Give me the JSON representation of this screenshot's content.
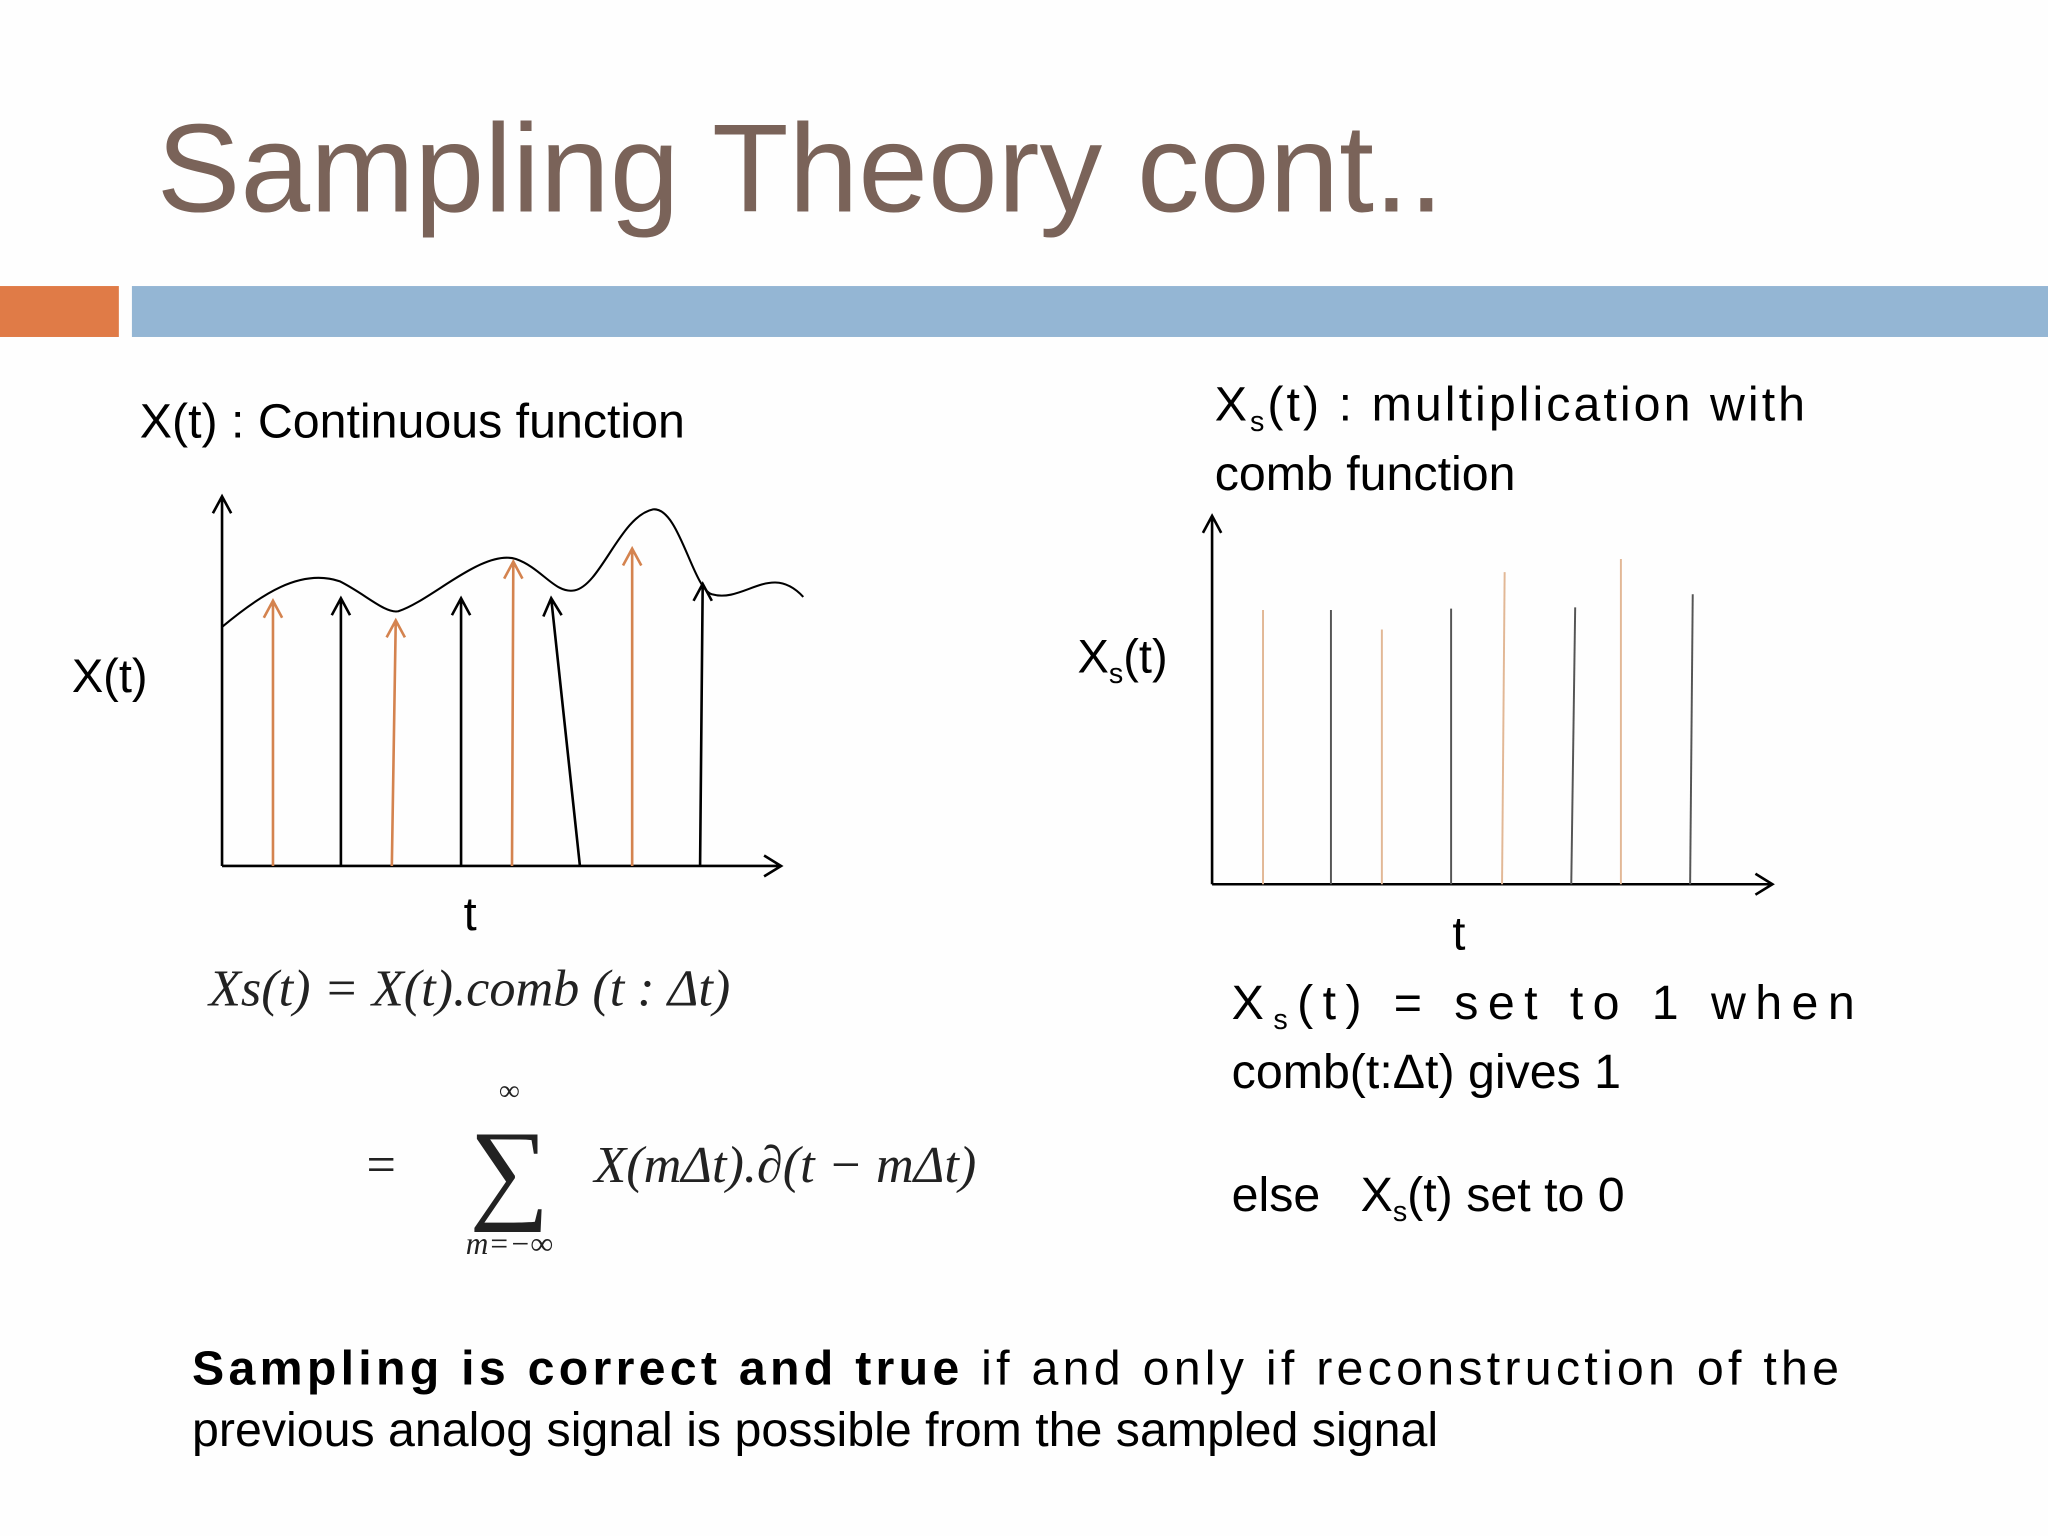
{
  "title": "Sampling Theory cont..",
  "left_panel": {
    "caption": "X(t) : Continuous function",
    "y_label": "X(t)",
    "x_label": "t",
    "formula_1": "Xs(t) = X(t).comb (t : Δt)",
    "formula_2": {
      "equals": "=",
      "sum_upper": "∞",
      "sum_symbol": "∑",
      "sum_lower": "m=−∞",
      "term": "X(mΔt).∂(t − mΔt)"
    }
  },
  "right_panel": {
    "caption": {
      "symbol": "X",
      "subscript": "s",
      "line1": "(t)  :  multiplication  with",
      "line2": "comb function"
    },
    "y_label": {
      "symbol": "X",
      "subscript": "s",
      "text": "(t)"
    },
    "x_label": "t",
    "note_1": {
      "symbol": "X",
      "subscript": "s",
      "line1": "(t)   =   set   to   1   when",
      "line2": "comb(t:Δt) gives 1"
    },
    "note_2": {
      "prefix": "else   ",
      "symbol": "X",
      "subscript": "s",
      "text": "(t) set to 0"
    }
  },
  "footer": {
    "bold": "Sampling is correct and true",
    "line1": " if and only if reconstruction of the",
    "line2": "previous analog signal is possible from the sampled signal"
  }
}
